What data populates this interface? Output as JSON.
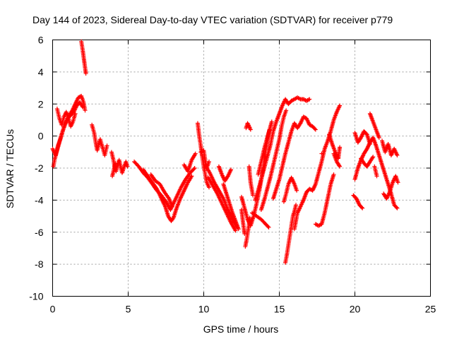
{
  "chart_data": {
    "type": "scatter",
    "title": "Day 144 of 2023, Sidereal Day-to-day VTEC variation (SDTVAR) for receiver p779",
    "xlabel": "GPS time / hours",
    "ylabel": "SDTVAR / TECUs",
    "xlim": [
      0,
      25
    ],
    "ylim": [
      -10,
      6
    ],
    "xticks": [
      "0",
      "5",
      "10",
      "15",
      "20",
      "25"
    ],
    "yticks": [
      "6",
      "4",
      "2",
      "0",
      "-2",
      "-4",
      "-6",
      "-8",
      "-10"
    ],
    "grid": true,
    "marker": "+",
    "marker_color": "#ff0000",
    "tracks": [
      [
        [
          0.0,
          -0.8
        ],
        [
          0.2,
          -1.2
        ],
        [
          0.35,
          -0.6
        ],
        [
          0.5,
          -0.2
        ],
        [
          0.7,
          0.4
        ],
        [
          0.9,
          0.9
        ],
        [
          1.1,
          1.3
        ],
        [
          1.3,
          1.6
        ],
        [
          1.5,
          2.0
        ],
        [
          1.7,
          2.4
        ],
        [
          1.9,
          2.5
        ],
        [
          2.05,
          2.1
        ],
        [
          2.15,
          1.6
        ]
      ],
      [
        [
          0.05,
          -1.9
        ],
        [
          0.15,
          -1.4
        ],
        [
          0.3,
          -0.9
        ],
        [
          0.45,
          -0.4
        ],
        [
          0.6,
          0.1
        ],
        [
          0.8,
          0.7
        ],
        [
          1.0,
          1.1
        ],
        [
          1.2,
          1.3
        ],
        [
          1.4,
          1.5
        ],
        [
          1.6,
          1.9
        ],
        [
          1.8,
          2.1
        ],
        [
          2.0,
          1.8
        ]
      ],
      [
        [
          0.3,
          1.7
        ],
        [
          0.45,
          1.1
        ],
        [
          0.6,
          0.7
        ],
        [
          0.75,
          1.2
        ],
        [
          0.9,
          1.5
        ],
        [
          1.05,
          1.1
        ],
        [
          1.2,
          0.6
        ],
        [
          1.35,
          0.9
        ],
        [
          1.5,
          1.4
        ]
      ],
      [
        [
          1.9,
          5.9
        ],
        [
          2.0,
          5.3
        ],
        [
          2.1,
          4.6
        ],
        [
          2.2,
          3.9
        ]
      ],
      [
        [
          2.6,
          0.7
        ],
        [
          2.75,
          0.2
        ],
        [
          2.85,
          -0.4
        ],
        [
          2.95,
          -0.9
        ],
        [
          3.05,
          -0.5
        ],
        [
          3.15,
          -0.2
        ],
        [
          3.3,
          -0.7
        ],
        [
          3.45,
          -1.2
        ],
        [
          3.6,
          -0.6
        ]
      ],
      [
        [
          3.9,
          -1.0
        ],
        [
          4.0,
          -1.4
        ],
        [
          4.1,
          -1.9
        ],
        [
          4.2,
          -2.2
        ],
        [
          4.3,
          -1.8
        ],
        [
          4.4,
          -1.5
        ],
        [
          4.5,
          -1.9
        ],
        [
          4.6,
          -2.3
        ],
        [
          4.7,
          -2.0
        ],
        [
          4.85,
          -1.6
        ],
        [
          4.95,
          -1.9
        ]
      ],
      [
        [
          3.95,
          -2.5
        ],
        [
          4.05,
          -2.1
        ],
        [
          4.15,
          -1.7
        ]
      ],
      [
        [
          5.4,
          -1.6
        ],
        [
          5.7,
          -1.9
        ],
        [
          6.0,
          -2.3
        ],
        [
          6.3,
          -2.6
        ],
        [
          6.6,
          -3.0
        ],
        [
          6.9,
          -3.4
        ],
        [
          7.2,
          -3.7
        ],
        [
          7.5,
          -4.1
        ],
        [
          7.8,
          -4.6
        ],
        [
          7.95,
          -4.3
        ],
        [
          8.2,
          -3.8
        ],
        [
          8.5,
          -3.2
        ],
        [
          8.8,
          -2.7
        ],
        [
          9.1,
          -2.3
        ],
        [
          9.4,
          -2.0
        ]
      ],
      [
        [
          6.0,
          -2.1
        ],
        [
          6.3,
          -2.5
        ],
        [
          6.6,
          -2.9
        ],
        [
          6.9,
          -3.3
        ],
        [
          7.2,
          -3.9
        ],
        [
          7.45,
          -4.4
        ],
        [
          7.65,
          -5.0
        ],
        [
          7.85,
          -5.3
        ],
        [
          8.0,
          -5.1
        ],
        [
          8.2,
          -4.5
        ],
        [
          8.45,
          -3.9
        ],
        [
          8.7,
          -3.4
        ],
        [
          8.95,
          -2.9
        ],
        [
          9.2,
          -2.5
        ]
      ],
      [
        [
          6.5,
          -2.4
        ],
        [
          6.8,
          -2.8
        ],
        [
          7.1,
          -3.0
        ],
        [
          7.4,
          -3.5
        ],
        [
          7.7,
          -3.9
        ],
        [
          7.9,
          -4.4
        ]
      ],
      [
        [
          8.7,
          -1.8
        ],
        [
          8.95,
          -2.2
        ],
        [
          9.2,
          -1.5
        ],
        [
          9.45,
          -1.1
        ]
      ],
      [
        [
          9.8,
          -1.0
        ],
        [
          10.0,
          -0.9
        ],
        [
          10.1,
          -1.5
        ],
        [
          10.2,
          -2.0
        ],
        [
          10.35,
          -1.6
        ]
      ],
      [
        [
          9.6,
          0.8
        ],
        [
          9.7,
          0.0
        ],
        [
          9.8,
          -0.6
        ],
        [
          9.9,
          -1.3
        ],
        [
          10.0,
          -1.9
        ],
        [
          10.1,
          -2.4
        ],
        [
          10.2,
          -2.9
        ],
        [
          10.35,
          -3.2
        ]
      ],
      [
        [
          10.1,
          -1.8
        ],
        [
          10.4,
          -2.3
        ],
        [
          10.7,
          -2.9
        ],
        [
          11.0,
          -3.4
        ],
        [
          11.3,
          -3.9
        ],
        [
          11.6,
          -4.6
        ],
        [
          11.9,
          -5.2
        ],
        [
          12.2,
          -5.7
        ]
      ],
      [
        [
          10.3,
          -2.6
        ],
        [
          10.6,
          -3.1
        ],
        [
          10.9,
          -3.6
        ],
        [
          11.2,
          -4.2
        ],
        [
          11.5,
          -4.8
        ],
        [
          11.8,
          -5.4
        ],
        [
          12.1,
          -5.9
        ]
      ],
      [
        [
          11.0,
          -1.9
        ],
        [
          11.2,
          -2.4
        ],
        [
          11.4,
          -2.8
        ],
        [
          11.6,
          -2.5
        ],
        [
          11.8,
          -2.1
        ]
      ],
      [
        [
          11.3,
          -3.0
        ],
        [
          11.5,
          -3.6
        ],
        [
          11.7,
          -4.2
        ],
        [
          11.9,
          -4.8
        ],
        [
          12.1,
          -5.3
        ],
        [
          12.3,
          -5.8
        ]
      ],
      [
        [
          12.5,
          -3.8
        ],
        [
          12.7,
          -4.5
        ],
        [
          12.9,
          -5.2
        ],
        [
          13.1,
          -5.6
        ],
        [
          13.3,
          -5.0
        ],
        [
          13.5,
          -4.2
        ],
        [
          13.7,
          -3.3
        ],
        [
          13.9,
          -2.2
        ],
        [
          14.1,
          -0.9
        ],
        [
          14.3,
          0.2
        ],
        [
          14.5,
          0.9
        ]
      ],
      [
        [
          12.75,
          -6.9
        ],
        [
          12.85,
          -6.4
        ],
        [
          12.95,
          -5.8
        ],
        [
          13.05,
          -5.1
        ]
      ],
      [
        [
          12.8,
          0.5
        ],
        [
          12.9,
          0.8
        ],
        [
          13.0,
          0.6
        ],
        [
          13.1,
          0.4
        ]
      ],
      [
        [
          12.5,
          -4.6
        ],
        [
          12.6,
          -5.4
        ],
        [
          12.7,
          -6.1
        ]
      ],
      [
        [
          13.0,
          -1.9
        ],
        [
          13.1,
          -2.9
        ],
        [
          13.25,
          -3.7
        ]
      ],
      [
        [
          13.6,
          -2.4
        ],
        [
          13.8,
          -1.6
        ],
        [
          14.0,
          -0.8
        ],
        [
          14.2,
          -0.1
        ],
        [
          14.35,
          0.4
        ]
      ],
      [
        [
          13.2,
          -4.8
        ],
        [
          13.5,
          -5.0
        ],
        [
          13.8,
          -5.2
        ],
        [
          14.1,
          -5.5
        ],
        [
          14.3,
          -5.7
        ]
      ],
      [
        [
          13.4,
          -4.0
        ],
        [
          13.6,
          -3.4
        ],
        [
          13.8,
          -2.7
        ],
        [
          14.0,
          -2.0
        ],
        [
          14.2,
          -1.3
        ],
        [
          14.4,
          -0.6
        ],
        [
          14.6,
          0.3
        ],
        [
          14.8,
          0.9
        ],
        [
          15.0,
          1.4
        ],
        [
          15.2,
          1.9
        ],
        [
          15.4,
          2.3
        ],
        [
          15.6,
          2.0
        ],
        [
          15.8,
          2.2
        ],
        [
          16.0,
          2.3
        ],
        [
          16.2,
          2.4
        ],
        [
          16.4,
          2.3
        ],
        [
          16.6,
          2.3
        ],
        [
          16.8,
          2.2
        ],
        [
          17.0,
          2.3
        ]
      ],
      [
        [
          13.8,
          -4.6
        ],
        [
          14.0,
          -4.0
        ],
        [
          14.2,
          -3.3
        ],
        [
          14.4,
          -2.6
        ],
        [
          14.6,
          -1.8
        ],
        [
          14.8,
          -1.0
        ],
        [
          15.0,
          -0.2
        ],
        [
          15.15,
          0.6
        ],
        [
          15.3,
          1.2
        ],
        [
          15.45,
          1.6
        ]
      ],
      [
        [
          14.6,
          -3.9
        ],
        [
          14.8,
          -3.3
        ],
        [
          15.0,
          -2.7
        ],
        [
          15.2,
          -1.9
        ],
        [
          15.4,
          -1.1
        ],
        [
          15.6,
          -0.4
        ],
        [
          15.8,
          0.3
        ],
        [
          16.0,
          0.8
        ],
        [
          16.2,
          0.5
        ],
        [
          16.4,
          0.8
        ],
        [
          16.6,
          1.2
        ],
        [
          16.8,
          1.1
        ],
        [
          17.0,
          0.7
        ],
        [
          17.2,
          0.6
        ],
        [
          17.4,
          0.4
        ]
      ],
      [
        [
          15.3,
          -4.1
        ],
        [
          15.45,
          -3.6
        ],
        [
          15.6,
          -3.0
        ],
        [
          15.8,
          -2.6
        ],
        [
          16.0,
          -3.0
        ],
        [
          16.15,
          -3.4
        ]
      ],
      [
        [
          15.4,
          -7.9
        ],
        [
          15.5,
          -7.4
        ],
        [
          15.6,
          -6.8
        ],
        [
          15.7,
          -6.2
        ],
        [
          15.8,
          -5.6
        ],
        [
          15.9,
          -5.0
        ],
        [
          16.0,
          -4.7
        ],
        [
          16.1,
          -4.3
        ]
      ],
      [
        [
          16.0,
          -5.8
        ],
        [
          16.2,
          -4.8
        ],
        [
          16.4,
          -4.4
        ],
        [
          16.6,
          -4.0
        ],
        [
          16.8,
          -3.5
        ],
        [
          17.0,
          -3.3
        ],
        [
          17.2,
          -3.4
        ],
        [
          17.4,
          -3.0
        ],
        [
          17.6,
          -2.3
        ],
        [
          17.8,
          -1.6
        ],
        [
          18.0,
          -0.8
        ],
        [
          18.2,
          -0.3
        ],
        [
          18.4,
          0.3
        ],
        [
          18.6,
          1.0
        ],
        [
          18.8,
          1.5
        ],
        [
          19.0,
          1.9
        ]
      ],
      [
        [
          17.4,
          -5.5
        ],
        [
          17.6,
          -5.6
        ],
        [
          17.8,
          -5.5
        ],
        [
          18.0,
          -4.8
        ],
        [
          18.2,
          -3.9
        ],
        [
          18.4,
          -3.0
        ],
        [
          18.6,
          -2.4
        ]
      ],
      [
        [
          17.8,
          -1.1
        ]
      ],
      [
        [
          18.3,
          0.1
        ],
        [
          18.5,
          -0.5
        ],
        [
          18.7,
          -1.0
        ],
        [
          18.9,
          -1.4
        ],
        [
          19.0,
          -0.7
        ]
      ],
      [
        [
          18.6,
          -1.1
        ],
        [
          18.8,
          -1.6
        ],
        [
          19.0,
          -1.9
        ]
      ],
      [
        [
          20.0,
          -2.7
        ],
        [
          20.2,
          -2.0
        ],
        [
          20.4,
          -1.5
        ],
        [
          20.6,
          -1.1
        ],
        [
          20.8,
          -0.8
        ],
        [
          21.0,
          -0.4
        ],
        [
          21.2,
          -0.1
        ],
        [
          21.4,
          -0.6
        ],
        [
          21.6,
          -1.2
        ],
        [
          21.8,
          -1.8
        ],
        [
          22.0,
          -2.4
        ],
        [
          22.2,
          -3.0
        ],
        [
          22.4,
          -3.6
        ],
        [
          22.6,
          -4.3
        ],
        [
          22.8,
          -4.5
        ]
      ],
      [
        [
          20.0,
          0.2
        ],
        [
          20.2,
          -0.4
        ],
        [
          20.4,
          -0.1
        ],
        [
          20.6,
          0.3
        ],
        [
          20.8,
          0.1
        ],
        [
          21.0,
          -0.5
        ]
      ],
      [
        [
          19.9,
          -3.7
        ],
        [
          20.1,
          -3.9
        ],
        [
          20.3,
          -4.3
        ],
        [
          20.5,
          -4.5
        ]
      ],
      [
        [
          20.4,
          -1.4
        ],
        [
          20.6,
          -1.7
        ],
        [
          20.8,
          -1.9
        ],
        [
          21.0,
          -1.6
        ],
        [
          21.2,
          -1.3
        ]
      ],
      [
        [
          21.0,
          1.4
        ],
        [
          21.2,
          0.9
        ],
        [
          21.4,
          0.4
        ],
        [
          21.6,
          -0.1
        ]
      ],
      [
        [
          21.3,
          -1.9
        ],
        [
          21.45,
          -2.5
        ]
      ],
      [
        [
          21.8,
          -0.3
        ],
        [
          22.0,
          -1.0
        ],
        [
          22.2,
          -0.5
        ],
        [
          22.4,
          -1.2
        ],
        [
          22.6,
          -0.8
        ],
        [
          22.8,
          -1.2
        ]
      ],
      [
        [
          21.9,
          -3.6
        ],
        [
          22.1,
          -3.9
        ],
        [
          22.3,
          -3.5
        ],
        [
          22.5,
          -2.9
        ],
        [
          22.7,
          -2.5
        ],
        [
          22.85,
          -2.9
        ]
      ]
    ]
  }
}
